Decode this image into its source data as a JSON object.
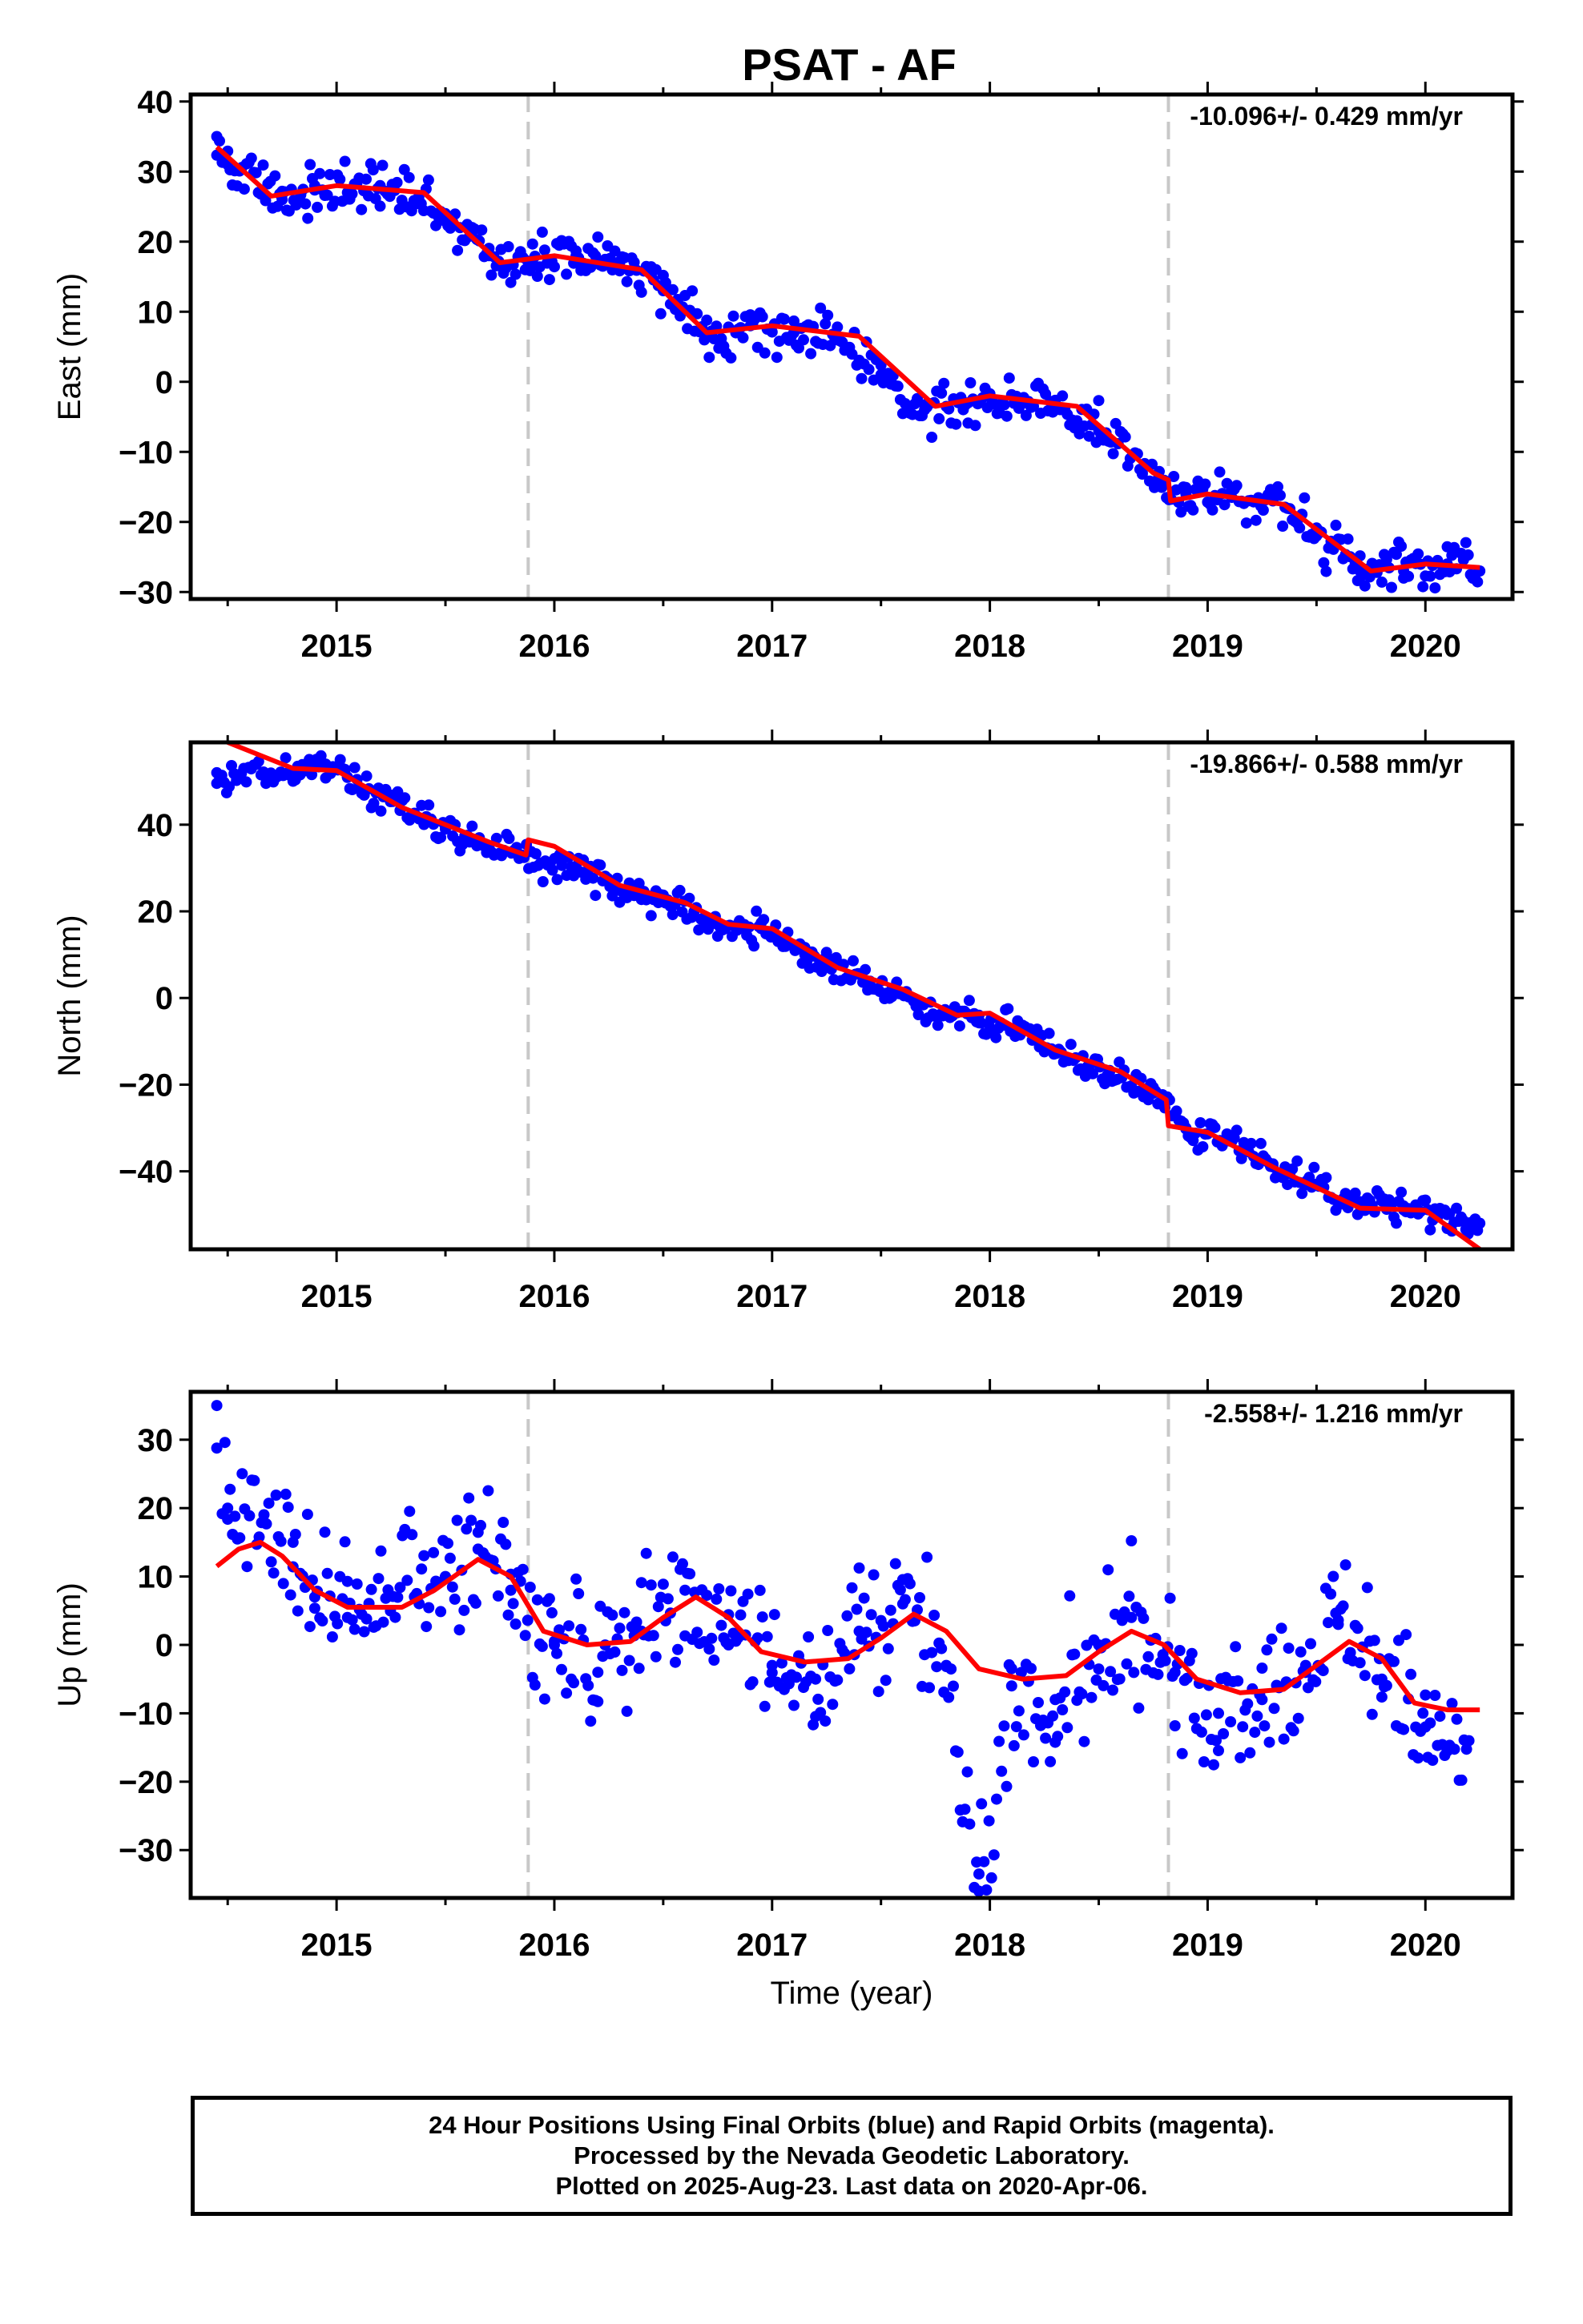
{
  "title": "PSAT - AF",
  "x_axis_label": "Time (year)",
  "colors": {
    "points": "#0000ff",
    "fit": "#ff0000",
    "event_line": "#c8c8c8"
  },
  "footer": {
    "line1": "24 Hour Positions Using Final Orbits (blue) and Rapid Orbits (magenta).",
    "line2": "Processed by the Nevada Geodetic Laboratory.",
    "line3": "Plotted on 2025-Aug-23. Last data on 2020-Apr-06."
  },
  "chart_data": [
    {
      "type": "scatter",
      "ylabel": "East (mm)",
      "rate": "-10.096+/- 0.429 mm/yr",
      "xlim": [
        2014.33,
        2020.4
      ],
      "ylim": [
        -31,
        41
      ],
      "yticks": [
        40,
        30,
        20,
        10,
        0,
        -10,
        -20,
        -30
      ],
      "xticks": [
        2015,
        2016,
        2017,
        2018,
        2019,
        2020
      ],
      "event_lines": [
        2015.88,
        2018.82
      ],
      "points": [
        [
          2014.45,
          35
        ],
        [
          2014.5,
          31
        ],
        [
          2014.75,
          26
        ],
        [
          2014.9,
          28
        ],
        [
          2015.05,
          27
        ],
        [
          2015.2,
          28
        ],
        [
          2015.5,
          24
        ],
        [
          2015.7,
          18
        ],
        [
          2015.9,
          17
        ],
        [
          2016.1,
          18
        ],
        [
          2016.3,
          17
        ],
        [
          2016.5,
          13
        ],
        [
          2016.7,
          7
        ],
        [
          2016.9,
          8
        ],
        [
          2017.1,
          7
        ],
        [
          2017.3,
          6
        ],
        [
          2017.5,
          1
        ],
        [
          2017.7,
          -4
        ],
        [
          2017.9,
          -3
        ],
        [
          2018.1,
          -2
        ],
        [
          2018.3,
          -3
        ],
        [
          2018.5,
          -7
        ],
        [
          2018.7,
          -13
        ],
        [
          2018.9,
          -16
        ],
        [
          2019.1,
          -16
        ],
        [
          2019.3,
          -17
        ],
        [
          2019.5,
          -22
        ],
        [
          2019.7,
          -27
        ],
        [
          2019.9,
          -27
        ],
        [
          2020.1,
          -26
        ],
        [
          2020.25,
          -27
        ]
      ],
      "fit": [
        [
          2014.45,
          33.5
        ],
        [
          2014.7,
          26.5
        ],
        [
          2015.0,
          28
        ],
        [
          2015.4,
          27
        ],
        [
          2015.75,
          17
        ],
        [
          2016.0,
          18
        ],
        [
          2016.4,
          16
        ],
        [
          2016.7,
          7
        ],
        [
          2017.0,
          8
        ],
        [
          2017.4,
          6.5
        ],
        [
          2017.75,
          -3.5
        ],
        [
          2018.0,
          -2
        ],
        [
          2018.4,
          -3.5
        ],
        [
          2018.75,
          -13
        ],
        [
          2018.82,
          -14
        ],
        [
          2018.83,
          -17
        ],
        [
          2019.0,
          -16
        ],
        [
          2019.35,
          -17.5
        ],
        [
          2019.75,
          -27
        ],
        [
          2020.0,
          -26
        ],
        [
          2020.25,
          -26.5
        ]
      ]
    },
    {
      "type": "scatter",
      "ylabel": "North (mm)",
      "rate": "-19.866+/- 0.588 mm/yr",
      "xlim": [
        2014.33,
        2020.4
      ],
      "ylim": [
        -58,
        59
      ],
      "yticks": [
        40,
        20,
        0,
        -20,
        -40
      ],
      "xticks": [
        2015,
        2016,
        2017,
        2018,
        2019,
        2020
      ],
      "event_lines": [
        2015.88,
        2018.82
      ],
      "points": [
        [
          2014.45,
          52
        ],
        [
          2014.8,
          52
        ],
        [
          2014.95,
          54
        ],
        [
          2015.05,
          51
        ],
        [
          2015.5,
          39
        ],
        [
          2015.7,
          35
        ],
        [
          2015.85,
          33
        ],
        [
          2016.1,
          30
        ],
        [
          2016.3,
          25
        ],
        [
          2016.5,
          23
        ],
        [
          2016.75,
          17
        ],
        [
          2016.95,
          16
        ],
        [
          2017.15,
          10
        ],
        [
          2017.35,
          5
        ],
        [
          2017.55,
          2
        ],
        [
          2017.75,
          -4
        ],
        [
          2017.95,
          -4
        ],
        [
          2018.15,
          -7
        ],
        [
          2018.35,
          -14
        ],
        [
          2018.55,
          -17
        ],
        [
          2018.75,
          -22
        ],
        [
          2018.9,
          -30
        ],
        [
          2019.1,
          -33
        ],
        [
          2019.3,
          -39
        ],
        [
          2019.5,
          -43
        ],
        [
          2019.7,
          -48
        ],
        [
          2019.9,
          -48
        ],
        [
          2020.1,
          -50
        ],
        [
          2020.25,
          -52
        ]
      ],
      "fit": [
        [
          2014.5,
          59
        ],
        [
          2014.8,
          53
        ],
        [
          2015.0,
          52.5
        ],
        [
          2015.3,
          44
        ],
        [
          2015.7,
          36
        ],
        [
          2015.87,
          33
        ],
        [
          2015.88,
          36.5
        ],
        [
          2016.0,
          35
        ],
        [
          2016.3,
          26
        ],
        [
          2016.6,
          22
        ],
        [
          2016.8,
          17
        ],
        [
          2017.0,
          16
        ],
        [
          2017.3,
          7
        ],
        [
          2017.6,
          2
        ],
        [
          2017.85,
          -4
        ],
        [
          2018.0,
          -3.5
        ],
        [
          2018.3,
          -12
        ],
        [
          2018.6,
          -17
        ],
        [
          2018.81,
          -23.5
        ],
        [
          2018.82,
          -29.5
        ],
        [
          2019.0,
          -31
        ],
        [
          2019.3,
          -39
        ],
        [
          2019.7,
          -48.5
        ],
        [
          2020.0,
          -49
        ],
        [
          2020.25,
          -58
        ]
      ]
    },
    {
      "type": "scatter",
      "ylabel": "Up (mm)",
      "rate": "-2.558+/- 1.216 mm/yr",
      "xlim": [
        2014.33,
        2020.4
      ],
      "ylim": [
        -37,
        37
      ],
      "yticks": [
        30,
        20,
        10,
        0,
        -10,
        -20,
        -30
      ],
      "xticks": [
        2015,
        2016,
        2017,
        2018,
        2019,
        2020
      ],
      "event_lines": [
        2015.88,
        2018.82
      ],
      "points": [
        [
          2014.45,
          35
        ],
        [
          2014.5,
          20
        ],
        [
          2014.8,
          15
        ],
        [
          2014.9,
          7
        ],
        [
          2015.05,
          4
        ],
        [
          2015.5,
          10
        ],
        [
          2015.65,
          14
        ],
        [
          2015.8,
          8
        ],
        [
          2016.0,
          0
        ],
        [
          2016.2,
          -4
        ],
        [
          2016.4,
          2
        ],
        [
          2016.6,
          8
        ],
        [
          2016.8,
          0
        ],
        [
          2017.0,
          -3
        ],
        [
          2017.2,
          -5
        ],
        [
          2017.4,
          2
        ],
        [
          2017.6,
          6
        ],
        [
          2017.8,
          -3
        ],
        [
          2017.95,
          -36
        ],
        [
          2018.1,
          -6
        ],
        [
          2018.3,
          -8
        ],
        [
          2018.5,
          0
        ],
        [
          2018.65,
          4
        ],
        [
          2018.85,
          -4
        ],
        [
          2019.05,
          -10
        ],
        [
          2019.25,
          -8
        ],
        [
          2019.45,
          -3
        ],
        [
          2019.6,
          3
        ],
        [
          2019.8,
          -5
        ],
        [
          2020.0,
          -12
        ],
        [
          2020.2,
          -14
        ]
      ],
      "fit": [
        [
          2014.45,
          11.5
        ],
        [
          2014.55,
          14
        ],
        [
          2014.65,
          15
        ],
        [
          2014.75,
          13
        ],
        [
          2014.9,
          8
        ],
        [
          2015.05,
          5.5
        ],
        [
          2015.3,
          5.5
        ],
        [
          2015.45,
          8
        ],
        [
          2015.65,
          12.5
        ],
        [
          2015.8,
          10
        ],
        [
          2015.95,
          2
        ],
        [
          2016.15,
          0
        ],
        [
          2016.35,
          0.5
        ],
        [
          2016.5,
          4
        ],
        [
          2016.65,
          7
        ],
        [
          2016.8,
          4
        ],
        [
          2016.95,
          -1
        ],
        [
          2017.15,
          -2.5
        ],
        [
          2017.35,
          -2
        ],
        [
          2017.5,
          1
        ],
        [
          2017.65,
          4.5
        ],
        [
          2017.8,
          2
        ],
        [
          2017.95,
          -3.5
        ],
        [
          2018.15,
          -5
        ],
        [
          2018.35,
          -4.5
        ],
        [
          2018.5,
          -1
        ],
        [
          2018.65,
          2
        ],
        [
          2018.8,
          0
        ],
        [
          2018.95,
          -5
        ],
        [
          2019.15,
          -7
        ],
        [
          2019.35,
          -6.5
        ],
        [
          2019.5,
          -3
        ],
        [
          2019.65,
          0.5
        ],
        [
          2019.8,
          -2
        ],
        [
          2019.95,
          -8.5
        ],
        [
          2020.1,
          -9.5
        ],
        [
          2020.25,
          -9.5
        ]
      ]
    }
  ]
}
